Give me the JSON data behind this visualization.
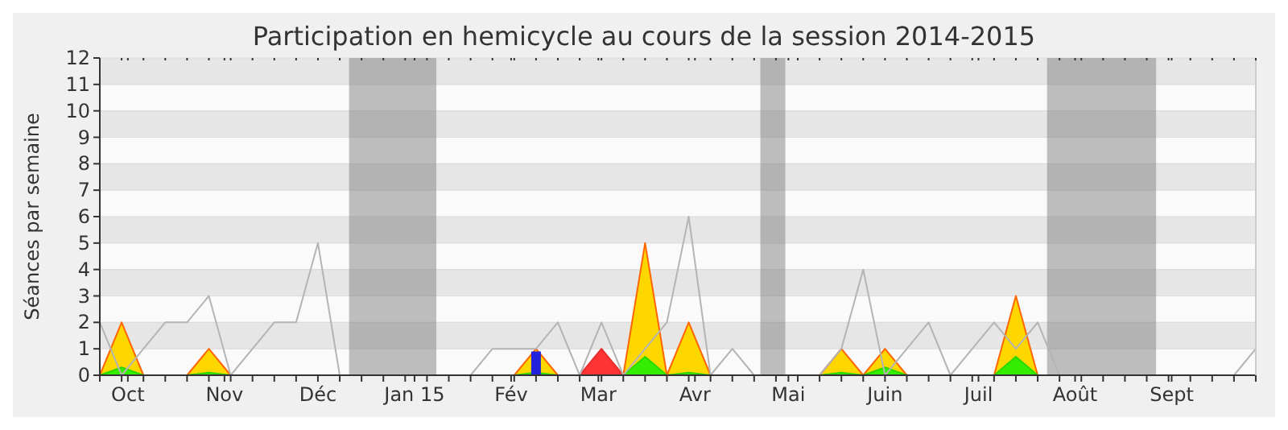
{
  "chart_data": {
    "type": "area",
    "title": "Participation en hemicycle au cours de la session 2014-2015",
    "ylabel": "Séances par semaine",
    "x": [
      "2014-09-22",
      "2014-09-29",
      "2014-10-06",
      "2014-10-13",
      "2014-10-20",
      "2014-10-27",
      "2014-11-03",
      "2014-11-10",
      "2014-11-17",
      "2014-11-24",
      "2014-12-01",
      "2014-12-08",
      "2014-12-15",
      "2014-12-22",
      "2014-12-29",
      "2015-01-05",
      "2015-01-12",
      "2015-01-19",
      "2015-01-26",
      "2015-02-02",
      "2015-02-09",
      "2015-02-16",
      "2015-02-23",
      "2015-03-02",
      "2015-03-09",
      "2015-03-16",
      "2015-03-23",
      "2015-03-30",
      "2015-04-06",
      "2015-04-13",
      "2015-04-20",
      "2015-04-27",
      "2015-05-04",
      "2015-05-11",
      "2015-05-18",
      "2015-05-25",
      "2015-06-01",
      "2015-06-08",
      "2015-06-15",
      "2015-06-22",
      "2015-06-29",
      "2015-07-06",
      "2015-07-13",
      "2015-07-20",
      "2015-07-27",
      "2015-08-03",
      "2015-08-10",
      "2015-08-17",
      "2015-08-24",
      "2015-08-31",
      "2015-09-07",
      "2015-09-14",
      "2015-09-21",
      "2015-09-28"
    ],
    "xlim": [
      "2014-09-22",
      "2015-09-28"
    ],
    "xticks": [
      {
        "value": "2014-09-22",
        "label": null
      },
      {
        "value": "2014-09-29",
        "label": null
      },
      {
        "value": "2014-10-01",
        "label": "Oct"
      },
      {
        "value": "2014-10-06",
        "label": null
      },
      {
        "value": "2014-10-13",
        "label": null
      },
      {
        "value": "2014-10-20",
        "label": null
      },
      {
        "value": "2014-10-27",
        "label": null
      },
      {
        "value": "2014-11-01",
        "label": "Nov"
      },
      {
        "value": "2014-11-03",
        "label": null
      },
      {
        "value": "2014-11-10",
        "label": null
      },
      {
        "value": "2014-11-17",
        "label": null
      },
      {
        "value": "2014-11-24",
        "label": null
      },
      {
        "value": "2014-12-01",
        "label": "Déc"
      },
      {
        "value": "2014-12-08",
        "label": null
      },
      {
        "value": "2014-12-15",
        "label": null
      },
      {
        "value": "2014-12-22",
        "label": null
      },
      {
        "value": "2014-12-29",
        "label": null
      },
      {
        "value": "2015-01-01",
        "label": "Jan 15"
      },
      {
        "value": "2015-01-05",
        "label": null
      },
      {
        "value": "2015-01-12",
        "label": null
      },
      {
        "value": "2015-01-19",
        "label": null
      },
      {
        "value": "2015-01-26",
        "label": null
      },
      {
        "value": "2015-02-01",
        "label": "Fév"
      },
      {
        "value": "2015-02-02",
        "label": null
      },
      {
        "value": "2015-02-09",
        "label": null
      },
      {
        "value": "2015-02-16",
        "label": null
      },
      {
        "value": "2015-02-23",
        "label": null
      },
      {
        "value": "2015-03-01",
        "label": "Mar"
      },
      {
        "value": "2015-03-02",
        "label": null
      },
      {
        "value": "2015-03-09",
        "label": null
      },
      {
        "value": "2015-03-16",
        "label": null
      },
      {
        "value": "2015-03-23",
        "label": null
      },
      {
        "value": "2015-03-30",
        "label": null
      },
      {
        "value": "2015-04-01",
        "label": "Avr"
      },
      {
        "value": "2015-04-06",
        "label": null
      },
      {
        "value": "2015-04-13",
        "label": null
      },
      {
        "value": "2015-04-20",
        "label": null
      },
      {
        "value": "2015-04-27",
        "label": null
      },
      {
        "value": "2015-05-01",
        "label": "Mai"
      },
      {
        "value": "2015-05-04",
        "label": null
      },
      {
        "value": "2015-05-11",
        "label": null
      },
      {
        "value": "2015-05-18",
        "label": null
      },
      {
        "value": "2015-05-25",
        "label": null
      },
      {
        "value": "2015-06-01",
        "label": "Juin"
      },
      {
        "value": "2015-06-08",
        "label": null
      },
      {
        "value": "2015-06-15",
        "label": null
      },
      {
        "value": "2015-06-22",
        "label": null
      },
      {
        "value": "2015-06-29",
        "label": null
      },
      {
        "value": "2015-07-01",
        "label": "Juil"
      },
      {
        "value": "2015-07-06",
        "label": null
      },
      {
        "value": "2015-07-13",
        "label": null
      },
      {
        "value": "2015-07-20",
        "label": null
      },
      {
        "value": "2015-07-27",
        "label": null
      },
      {
        "value": "2015-08-01",
        "label": "Août"
      },
      {
        "value": "2015-08-03",
        "label": null
      },
      {
        "value": "2015-08-10",
        "label": null
      },
      {
        "value": "2015-08-17",
        "label": null
      },
      {
        "value": "2015-08-24",
        "label": null
      },
      {
        "value": "2015-08-31",
        "label": null
      },
      {
        "value": "2015-09-01",
        "label": "Sept"
      },
      {
        "value": "2015-09-07",
        "label": null
      },
      {
        "value": "2015-09-14",
        "label": null
      },
      {
        "value": "2015-09-21",
        "label": null
      },
      {
        "value": "2015-09-28",
        "label": null
      }
    ],
    "ylim": [
      0,
      12
    ],
    "yticks": [
      0,
      1,
      2,
      3,
      4,
      5,
      6,
      7,
      8,
      9,
      10,
      11,
      12
    ],
    "grid": "y",
    "bands": [
      {
        "axis": "x",
        "from": "2014-12-11",
        "to": "2015-01-08",
        "color": "#808080"
      },
      {
        "axis": "x",
        "from": "2015-04-22",
        "to": "2015-04-30",
        "color": "#808080"
      },
      {
        "axis": "x",
        "from": "2015-07-23",
        "to": "2015-08-27",
        "color": "#808080"
      }
    ],
    "series": [
      {
        "color": "#ffd700",
        "values": [
          0,
          2,
          0,
          0,
          0,
          1,
          0,
          0,
          0,
          0,
          0,
          0,
          0,
          0,
          0,
          0,
          0,
          0,
          0,
          0,
          1,
          0,
          0,
          0,
          0,
          5,
          0,
          2,
          0,
          0,
          0,
          0,
          0,
          0,
          1,
          0,
          1,
          0,
          0,
          0,
          0,
          0,
          3,
          0,
          0,
          0,
          0,
          0,
          0,
          0,
          0,
          0,
          0,
          0
        ]
      },
      {
        "color": "#33ee00",
        "values": [
          0,
          0.3,
          0,
          0,
          0,
          0.1,
          0,
          0,
          0,
          0,
          0,
          0,
          0,
          0,
          0,
          0,
          0,
          0,
          0,
          0,
          0.1,
          0,
          0,
          0,
          0,
          0.7,
          0,
          0.1,
          0,
          0,
          0,
          0,
          0,
          0,
          0.1,
          0,
          0.3,
          0,
          0,
          0,
          0,
          0,
          0.7,
          0,
          0,
          0,
          0,
          0,
          0,
          0,
          0,
          0,
          0,
          0
        ]
      },
      {
        "color": "#ff3333",
        "values": [
          0,
          0,
          0,
          0,
          0,
          0,
          0,
          0,
          0,
          0,
          0,
          0,
          0,
          0,
          0,
          0,
          0,
          0,
          0,
          0,
          0,
          0,
          0,
          1,
          0,
          0,
          0,
          0,
          0,
          0,
          0,
          0,
          0,
          0,
          0,
          0,
          0,
          0,
          0,
          0,
          0,
          0,
          0,
          0,
          0,
          0,
          0,
          0,
          0,
          0,
          0,
          0,
          0,
          0
        ]
      },
      {
        "type": "bar",
        "color": "#2222dd",
        "values": [
          null,
          null,
          null,
          null,
          null,
          null,
          null,
          null,
          null,
          null,
          null,
          null,
          null,
          null,
          null,
          null,
          null,
          null,
          null,
          null,
          0.9,
          null,
          null,
          null,
          null,
          null,
          null,
          null,
          null,
          null,
          null,
          null,
          null,
          null,
          null,
          null,
          null,
          null,
          null,
          null,
          null,
          null,
          null,
          null,
          null,
          null,
          null,
          null,
          null,
          null,
          null,
          null,
          null,
          null
        ]
      },
      {
        "type": "line",
        "color": "#b4b4b4",
        "values": [
          2,
          0,
          1,
          2,
          2,
          3,
          0,
          1,
          2,
          2,
          5,
          0,
          null,
          null,
          null,
          null,
          null,
          0,
          1,
          1,
          1,
          2,
          0,
          2,
          0,
          1,
          2,
          6,
          0,
          1,
          0,
          0,
          0,
          0,
          1,
          4,
          0,
          1,
          2,
          0,
          1,
          2,
          1,
          2,
          0,
          null,
          null,
          null,
          null,
          null,
          null,
          null,
          0,
          1
        ]
      }
    ]
  }
}
